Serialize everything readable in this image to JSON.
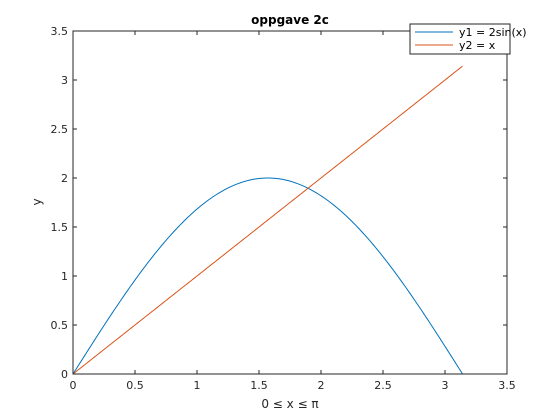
{
  "chart_data": {
    "type": "line",
    "title": "oppgave 2c",
    "xlabel": "0 ≤ x ≤ π",
    "ylabel": "y",
    "xlim": [
      0,
      3.5
    ],
    "ylim": [
      0,
      3.5
    ],
    "x_ticks": [
      "0",
      "0.5",
      "1",
      "1.5",
      "2",
      "2.5",
      "3",
      "3.5"
    ],
    "y_ticks": [
      "0",
      "0.5",
      "1",
      "1.5",
      "2",
      "2.5",
      "3",
      "3.5"
    ],
    "grid": false,
    "legend_position": "top-right",
    "x": [
      0,
      0.1963,
      0.3927,
      0.589,
      0.7854,
      0.9817,
      1.1781,
      1.3744,
      1.5708,
      1.7671,
      1.9635,
      2.1598,
      2.3562,
      2.5525,
      2.7489,
      2.9452,
      3.1416
    ],
    "series": [
      {
        "name": "y1 = 2sin(x)",
        "color": "#0072BD",
        "values": [
          0,
          0.39,
          0.765,
          1.111,
          1.414,
          1.663,
          1.848,
          1.962,
          2.0,
          1.962,
          1.848,
          1.663,
          1.414,
          1.111,
          0.765,
          0.39,
          0
        ]
      },
      {
        "name": "y2 = x",
        "color": "#D95319",
        "values": [
          0,
          0.1963,
          0.3927,
          0.589,
          0.7854,
          0.9817,
          1.1781,
          1.3744,
          1.5708,
          1.7671,
          1.9635,
          2.1598,
          2.3562,
          2.5525,
          2.7489,
          2.9452,
          3.1416
        ]
      }
    ]
  }
}
